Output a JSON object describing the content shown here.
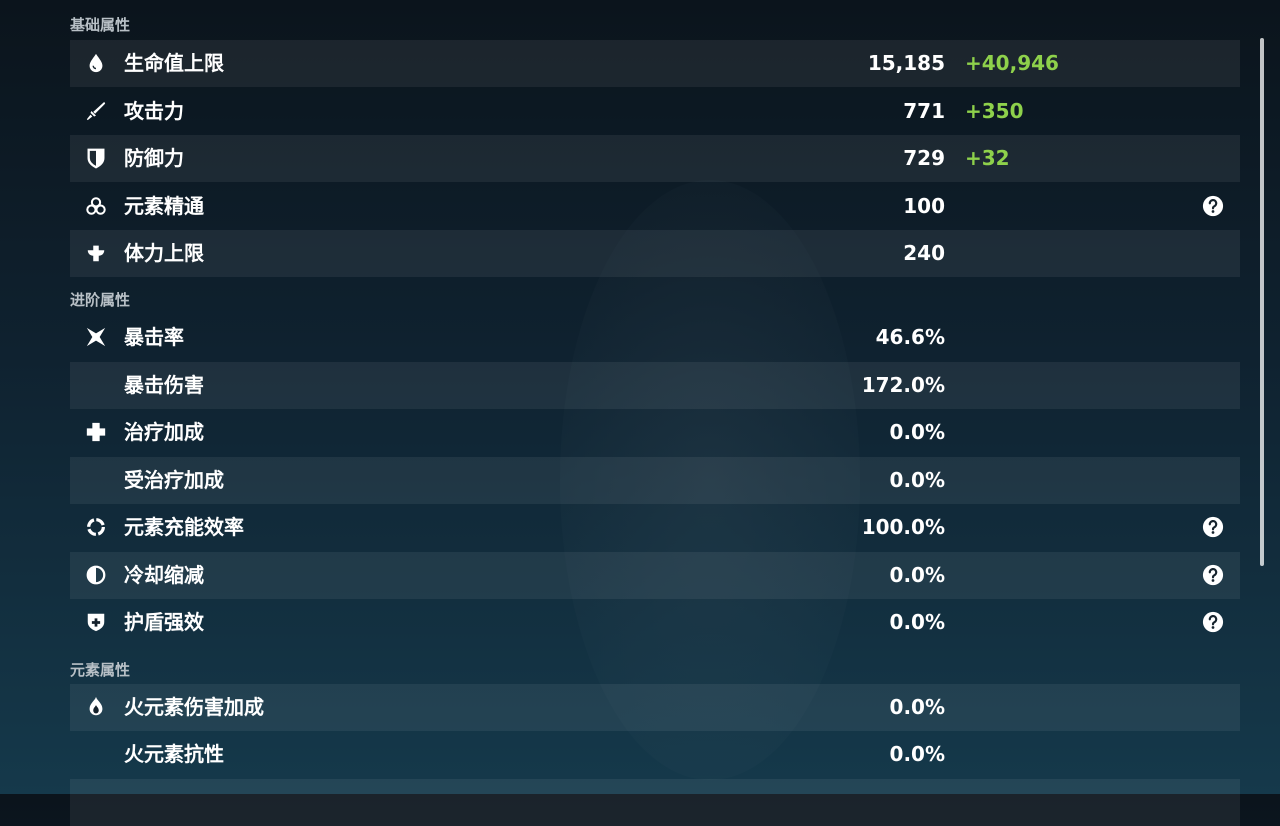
{
  "sections": [
    {
      "title": "基础属性",
      "rows": [
        {
          "label": "生命值上限",
          "value": "15,185",
          "bonus": "+40,946"
        },
        {
          "label": "攻击力",
          "value": "771",
          "bonus": "+350"
        },
        {
          "label": "防御力",
          "value": "729",
          "bonus": "+32"
        },
        {
          "label": "元素精通",
          "value": "100"
        },
        {
          "label": "体力上限",
          "value": "240"
        }
      ]
    },
    {
      "title": "进阶属性",
      "rows": [
        {
          "label": "暴击率",
          "value": "46.6%"
        },
        {
          "label": "暴击伤害",
          "value": "172.0%"
        },
        {
          "label": "治疗加成",
          "value": "0.0%"
        },
        {
          "label": "受治疗加成",
          "value": "0.0%"
        },
        {
          "label": "元素充能效率",
          "value": "100.0%"
        },
        {
          "label": "冷却缩减",
          "value": "0.0%"
        },
        {
          "label": "护盾强效",
          "value": "0.0%"
        }
      ]
    },
    {
      "title": "元素属性",
      "rows": [
        {
          "label": "火元素伤害加成",
          "value": "0.0%"
        },
        {
          "label": "火元素抗性",
          "value": "0.0%"
        }
      ]
    }
  ]
}
